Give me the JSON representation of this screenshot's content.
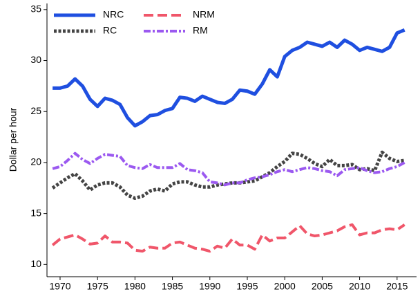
{
  "chart_data": {
    "type": "line",
    "y_label": "Dollar per hour",
    "x": [
      1969,
      1970,
      1971,
      1972,
      1973,
      1974,
      1975,
      1976,
      1977,
      1978,
      1979,
      1980,
      1981,
      1982,
      1983,
      1984,
      1985,
      1986,
      1987,
      1988,
      1989,
      1990,
      1991,
      1992,
      1993,
      1994,
      1995,
      1996,
      1997,
      1998,
      1999,
      2000,
      2001,
      2002,
      2003,
      2004,
      2005,
      2006,
      2007,
      2008,
      2009,
      2010,
      2011,
      2012,
      2013,
      2014,
      2015,
      2016
    ],
    "series": [
      {
        "name": "NRC",
        "color": "#1f4fe0",
        "style": "solid",
        "values": [
          27.3,
          27.3,
          27.5,
          28.2,
          27.5,
          26.2,
          25.5,
          26.3,
          26.1,
          25.7,
          24.4,
          23.6,
          24.0,
          24.6,
          24.7,
          25.1,
          25.3,
          26.4,
          26.3,
          26.0,
          26.5,
          26.2,
          25.9,
          25.8,
          26.2,
          27.1,
          27.0,
          26.7,
          27.7,
          29.1,
          28.4,
          30.4,
          31.0,
          31.3,
          31.8,
          31.6,
          31.4,
          31.8,
          31.3,
          32.0,
          31.6,
          31.0,
          31.3,
          31.1,
          30.9,
          31.3,
          32.7,
          33.0
        ]
      },
      {
        "name": "RC",
        "color": "#444444",
        "style": "dotted",
        "values": [
          17.5,
          18.0,
          18.5,
          18.9,
          18.2,
          17.3,
          17.8,
          18.0,
          18.0,
          17.6,
          16.8,
          16.5,
          16.7,
          17.2,
          17.4,
          17.2,
          17.9,
          18.1,
          18.1,
          17.8,
          17.6,
          17.6,
          17.8,
          17.9,
          18.0,
          18.0,
          18.1,
          18.2,
          18.6,
          19.0,
          19.6,
          20.1,
          20.9,
          20.8,
          20.4,
          19.9,
          19.6,
          20.3,
          19.7,
          19.7,
          19.8,
          19.3,
          19.4,
          19.2,
          21.0,
          20.4,
          20.1,
          20.2
        ]
      },
      {
        "name": "NRM",
        "color": "#f0566a",
        "style": "dashed",
        "values": [
          11.9,
          12.5,
          12.7,
          12.9,
          12.5,
          12.0,
          12.1,
          12.8,
          12.2,
          12.2,
          12.1,
          11.4,
          11.3,
          11.7,
          11.6,
          11.6,
          12.1,
          12.2,
          11.9,
          11.6,
          11.5,
          11.3,
          11.8,
          11.6,
          12.5,
          11.9,
          11.9,
          11.5,
          12.9,
          12.3,
          12.6,
          12.6,
          13.2,
          13.8,
          13.0,
          12.8,
          12.9,
          13.1,
          13.3,
          13.7,
          13.9,
          12.9,
          13.1,
          13.1,
          13.4,
          13.5,
          13.4,
          13.9
        ]
      },
      {
        "name": "RM",
        "color": "#9b59f0",
        "style": "dashdot",
        "values": [
          19.4,
          19.6,
          20.2,
          20.9,
          20.3,
          19.9,
          20.4,
          20.8,
          20.7,
          20.6,
          19.7,
          19.5,
          19.4,
          19.8,
          19.5,
          19.5,
          19.5,
          19.9,
          19.3,
          19.2,
          19.0,
          18.1,
          18.0,
          17.8,
          18.0,
          18.0,
          18.3,
          18.5,
          18.6,
          18.8,
          19.1,
          19.3,
          19.1,
          19.3,
          19.5,
          19.4,
          19.2,
          19.1,
          18.7,
          19.3,
          19.4,
          19.5,
          19.2,
          19.0,
          19.1,
          19.4,
          19.6,
          20.0
        ]
      }
    ],
    "xlim": [
      1968.25,
      2017.6
    ],
    "xticks": [
      1970,
      1975,
      1980,
      1985,
      1990,
      1995,
      2000,
      2005,
      2010,
      2015
    ],
    "ylim": [
      8.8,
      35.6
    ],
    "yticks": [
      10,
      15,
      20,
      25,
      30,
      35
    ],
    "grid": false,
    "legend": "upper left",
    "legend_columns": 2
  }
}
